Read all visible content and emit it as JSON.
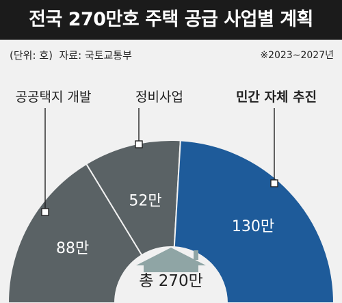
{
  "header": {
    "title": "전국 270만호 주택 공급 사업별 계획",
    "unit": "(단위: 호)",
    "source": "자료: 국토교통부",
    "period": "※2023∼2027년"
  },
  "colors": {
    "title_bg": "#1b1b1b",
    "background": "#f1f1f1",
    "gray_segment": "#5a6265",
    "blue_segment": "#1e5b9a",
    "house_icon": "#8fa5a5"
  },
  "chart_data": {
    "type": "pie",
    "style": "half-donut",
    "title": "전국 270만호 주택 공급 사업별 계획",
    "unit": "호",
    "categories": [
      "공공택지 개발",
      "정비사업",
      "민간 자체 추진"
    ],
    "values": [
      88,
      52,
      130
    ],
    "value_labels": [
      "88만",
      "52만",
      "130만"
    ],
    "colors": [
      "#5a6265",
      "#5a6265",
      "#1e5b9a"
    ],
    "total_label": "총 270만",
    "total": 270,
    "legend": "callouts",
    "highlight": "민간 자체 추진"
  }
}
